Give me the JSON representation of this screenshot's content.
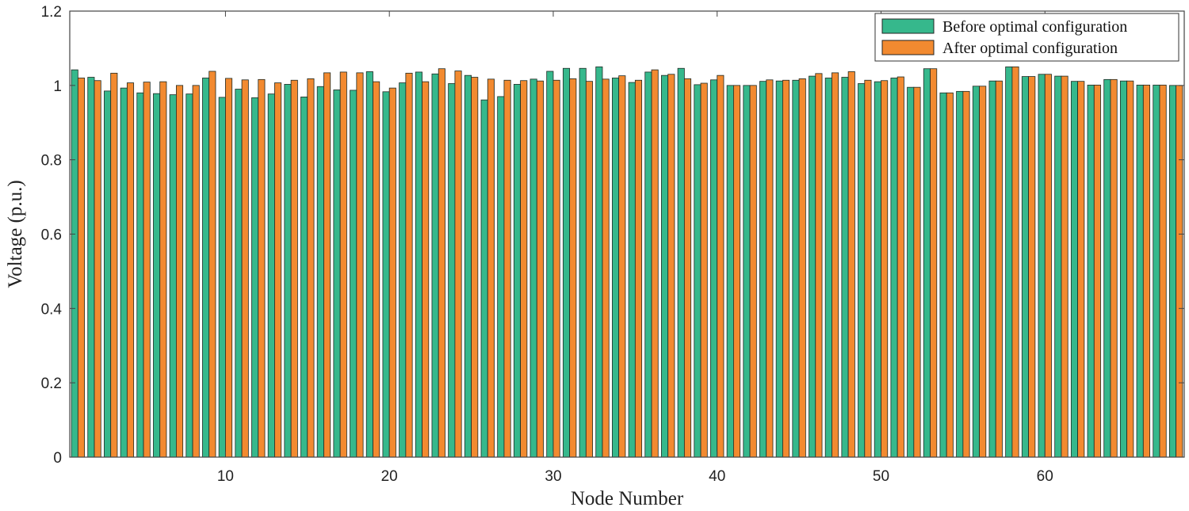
{
  "chart_data": {
    "type": "bar",
    "title": "",
    "xlabel": "Node Number",
    "ylabel": "Voltage (p.u.)",
    "xlim": [
      0.5,
      68.5
    ],
    "ylim": [
      0,
      1.2
    ],
    "xticks": [
      10,
      20,
      30,
      40,
      50,
      60
    ],
    "yticks": [
      0,
      0.2,
      0.4,
      0.6,
      0.8,
      1,
      1.2
    ],
    "grid": false,
    "legend_position": "top-right",
    "x": [
      1,
      2,
      3,
      4,
      5,
      6,
      7,
      8,
      9,
      10,
      11,
      12,
      13,
      14,
      15,
      16,
      17,
      18,
      19,
      20,
      21,
      22,
      23,
      24,
      25,
      26,
      27,
      28,
      29,
      30,
      31,
      32,
      33,
      34,
      35,
      36,
      37,
      38,
      39,
      40,
      41,
      42,
      43,
      44,
      45,
      46,
      47,
      48,
      49,
      50,
      51,
      52,
      53,
      54,
      55,
      56,
      57,
      58,
      59,
      60,
      61,
      62,
      63,
      64,
      65,
      66,
      67,
      68
    ],
    "series": [
      {
        "name": "Before optimal configuration",
        "color": "#36b88c",
        "values": [
          1.042,
          1.022,
          0.985,
          0.993,
          0.98,
          0.978,
          0.975,
          0.977,
          1.02,
          0.968,
          0.99,
          0.967,
          0.977,
          1.003,
          0.969,
          0.997,
          0.988,
          0.987,
          1.037,
          0.983,
          1.007,
          1.036,
          1.031,
          1.005,
          1.027,
          0.961,
          0.97,
          1.003,
          1.017,
          1.038,
          1.046,
          1.046,
          1.05,
          1.02,
          1.008,
          1.036,
          1.027,
          1.046,
          1.002,
          1.015,
          1.0,
          1.0,
          1.011,
          1.012,
          1.014,
          1.025,
          1.02,
          1.022,
          1.005,
          1.01,
          1.02,
          0.995,
          1.045,
          0.98,
          0.984,
          0.998,
          1.012,
          1.05,
          1.024,
          1.03,
          1.025,
          1.011,
          1.001,
          1.016,
          1.012,
          1.001,
          1.001,
          1.0
        ]
      },
      {
        "name": "After optimal configuration",
        "color": "#f28a30",
        "values": [
          1.02,
          1.013,
          1.033,
          1.007,
          1.009,
          1.01,
          1.0,
          1.0,
          1.038,
          1.019,
          1.015,
          1.016,
          1.007,
          1.014,
          1.018,
          1.034,
          1.036,
          1.034,
          1.01,
          0.993,
          1.033,
          1.01,
          1.045,
          1.039,
          1.022,
          1.017,
          1.014,
          1.013,
          1.012,
          1.014,
          1.018,
          1.011,
          1.017,
          1.026,
          1.014,
          1.042,
          1.03,
          1.018,
          1.006,
          1.027,
          1.0,
          1.0,
          1.015,
          1.014,
          1.018,
          1.032,
          1.034,
          1.037,
          1.014,
          1.013,
          1.023,
          0.995,
          1.045,
          0.98,
          0.984,
          0.998,
          1.012,
          1.05,
          1.024,
          1.03,
          1.025,
          1.011,
          1.001,
          1.016,
          1.012,
          1.001,
          1.001,
          1.0
        ]
      }
    ]
  }
}
